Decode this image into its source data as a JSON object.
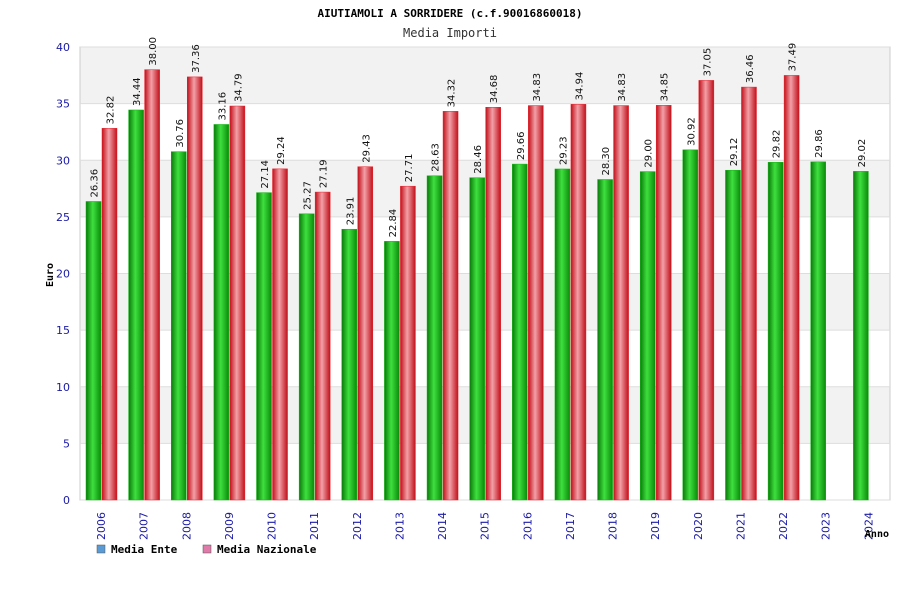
{
  "chart_data": {
    "type": "bar",
    "title": "AIUTIAMOLI A SORRIDERE (c.f.90016860018)",
    "subtitle": "Media Importi",
    "ylabel": "Euro",
    "xlabel": "Anno",
    "ylim": [
      0,
      40
    ],
    "yticks": [
      0,
      5,
      10,
      15,
      20,
      25,
      30,
      35,
      40
    ],
    "grid": true,
    "legend_position": "bottom-left",
    "categories": [
      "2006",
      "2007",
      "2008",
      "2009",
      "2010",
      "2011",
      "2012",
      "2013",
      "2014",
      "2015",
      "2016",
      "2017",
      "2018",
      "2019",
      "2020",
      "2021",
      "2022",
      "2023",
      "2024"
    ],
    "value_labels": {
      "ente": [
        "26.36",
        "34.44",
        "30.76",
        "33.16",
        "27.14",
        "25.27",
        "23.91",
        "22.84",
        "28.63",
        "28.46",
        "29.66",
        "29.23",
        "28.30",
        "29.00",
        "30.92",
        "29.12",
        "29.82",
        "29.86",
        "29.02"
      ],
      "nazionale": [
        "32.82",
        "38.00",
        "37.36",
        "34.79",
        "29.24",
        "27.19",
        "29.43",
        "27.71",
        "34.32",
        "34.68",
        "34.83",
        "34.94",
        "34.83",
        "34.85",
        "37.05",
        "36.46",
        "37.49"
      ]
    },
    "series": [
      {
        "name": "Media Ente",
        "color": "#11b411",
        "legend_color": "#5b9bd5",
        "values": [
          26.36,
          34.44,
          30.76,
          33.16,
          27.14,
          25.27,
          23.91,
          22.84,
          28.63,
          28.46,
          29.66,
          29.23,
          28.3,
          29.0,
          30.92,
          29.12,
          29.82,
          29.86,
          29.02
        ]
      },
      {
        "name": "Media Nazionale",
        "color": "#e8202a",
        "legend_color": "#e07aa8",
        "values": [
          32.82,
          38.0,
          37.36,
          34.79,
          29.24,
          27.19,
          29.43,
          27.71,
          34.32,
          34.68,
          34.83,
          34.94,
          34.83,
          34.85,
          37.05,
          36.46,
          37.49,
          null,
          null
        ]
      }
    ]
  }
}
